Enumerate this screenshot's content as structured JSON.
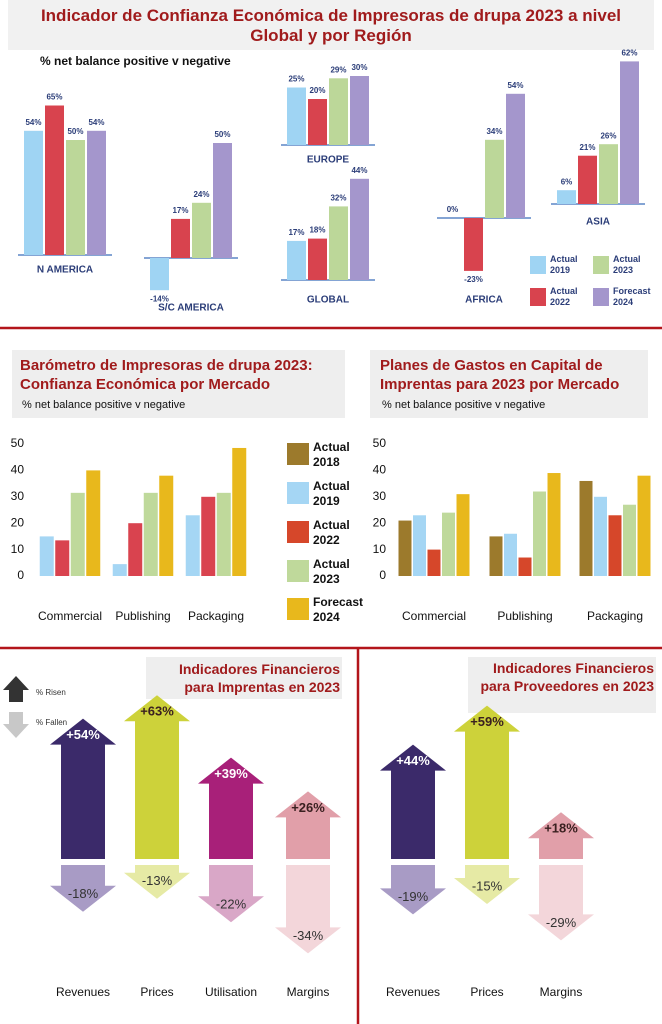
{
  "chart_data": [
    {
      "type": "bar",
      "title": "Indicador de Confianza Económica de Impresoras de drupa 2023 a nivel Global y por Región",
      "subtitle": "% net balance positive v negative",
      "categories": [
        "N AMERICA",
        "S/C AMERICA",
        "EUROPE",
        "GLOBAL",
        "AFRICA",
        "ASIA"
      ],
      "series": [
        {
          "name": "Actual 2019",
          "color": "#9fd4f3",
          "values": [
            54,
            -14,
            25,
            17,
            0,
            6
          ],
          "value_labels": [
            "54%",
            "-14%",
            "25%",
            "17%",
            "0%",
            "6%"
          ]
        },
        {
          "name": "Actual 2022",
          "color": "#d8434e",
          "values": [
            65,
            17,
            20,
            18,
            -23,
            21
          ],
          "value_labels": [
            "65%",
            "17%",
            "20%",
            "18%",
            "-23%",
            "21%"
          ]
        },
        {
          "name": "Actual 2023",
          "color": "#bcd799",
          "values": [
            50,
            24,
            29,
            32,
            34,
            26
          ],
          "value_labels": [
            "50%",
            "24%",
            "29%",
            "32%",
            "34%",
            "26%"
          ]
        },
        {
          "name": "Forecast 2024",
          "color": "#a496cc",
          "values": [
            54,
            50,
            30,
            44,
            54,
            62
          ],
          "value_labels": [
            "54%",
            "50%",
            "30%",
            "44%",
            "54%",
            "62%"
          ]
        }
      ]
    },
    {
      "type": "bar",
      "title": "Barómetro de Impresoras de drupa 2023: Confianza Económica por Mercado",
      "subtitle": "% net balance positive v negative",
      "categories": [
        "Commercial",
        "Publishing",
        "Packaging"
      ],
      "series": [
        {
          "color": "#a5d6f4",
          "values": [
            15,
            4.5,
            23
          ]
        },
        {
          "color": "#d9434f",
          "values": [
            13.5,
            20,
            30
          ]
        },
        {
          "color": "#bfd99b",
          "values": [
            31.5,
            31.5,
            31.5
          ]
        },
        {
          "color": "#e8b81c",
          "values": [
            40,
            38,
            48.5
          ]
        }
      ],
      "ylim": [
        0,
        50
      ],
      "yticks": [
        0,
        10,
        20,
        30,
        40,
        50
      ]
    },
    {
      "type": "bar",
      "title": "Planes de Gastos en Capital de Imprentas para 2023 por Mercado",
      "subtitle": "% net balance positive v negative",
      "categories": [
        "Commercial",
        "Publishing",
        "Packaging"
      ],
      "series": [
        {
          "name": "Actual 2018",
          "color": "#9c7a2c",
          "values": [
            21,
            15,
            36
          ]
        },
        {
          "name": "Actual 2019",
          "color": "#a5d6f4",
          "values": [
            23,
            16,
            30
          ]
        },
        {
          "name": "Actual 2022",
          "color": "#d6472a",
          "values": [
            10,
            7,
            23
          ]
        },
        {
          "name": "Actual 2023",
          "color": "#bfd99b",
          "values": [
            24,
            32,
            27
          ]
        },
        {
          "name": "Forecast 2024",
          "color": "#e8b81c",
          "values": [
            31,
            39,
            38
          ]
        }
      ],
      "ylim": [
        0,
        50
      ],
      "yticks": [
        0,
        10,
        20,
        30,
        40,
        50
      ]
    },
    {
      "type": "arrow",
      "title": "Indicadores Financieros para Imprentas en 2023",
      "categories": [
        "Revenues",
        "Prices",
        "Utilisation",
        "Margins"
      ],
      "series": [
        {
          "name": "% Risen",
          "colors": [
            "#3b2a6a",
            "#cdd23a",
            "#a82079",
            "#e19fa9"
          ],
          "values": [
            54,
            63,
            39,
            26
          ],
          "value_labels": [
            "+54%",
            "+63%",
            "+39%",
            "+26%"
          ]
        },
        {
          "name": "% Fallen",
          "colors": [
            "#a89bc5",
            "#e6eaa5",
            "#d9a7c7",
            "#f3d6da"
          ],
          "values": [
            -18,
            -13,
            -22,
            -34
          ],
          "value_labels": [
            "-18%",
            "-13%",
            "-22%",
            "-34%"
          ]
        }
      ]
    },
    {
      "type": "arrow",
      "title": "Indicadores Financieros para Proveedores en 2023",
      "categories": [
        "Revenues",
        "Prices",
        "Margins"
      ],
      "series": [
        {
          "colors": [
            "#3b2a6a",
            "#cdd23a",
            "#e19fa9"
          ],
          "values": [
            44,
            59,
            18
          ],
          "value_labels": [
            "+44%",
            "+59%",
            "+18%"
          ]
        },
        {
          "colors": [
            "#a89bc5",
            "#e6eaa5",
            "#f3d6da"
          ],
          "values": [
            -19,
            -15,
            -29
          ],
          "value_labels": [
            "-19%",
            "-15%",
            "-29%"
          ]
        }
      ]
    }
  ]
}
